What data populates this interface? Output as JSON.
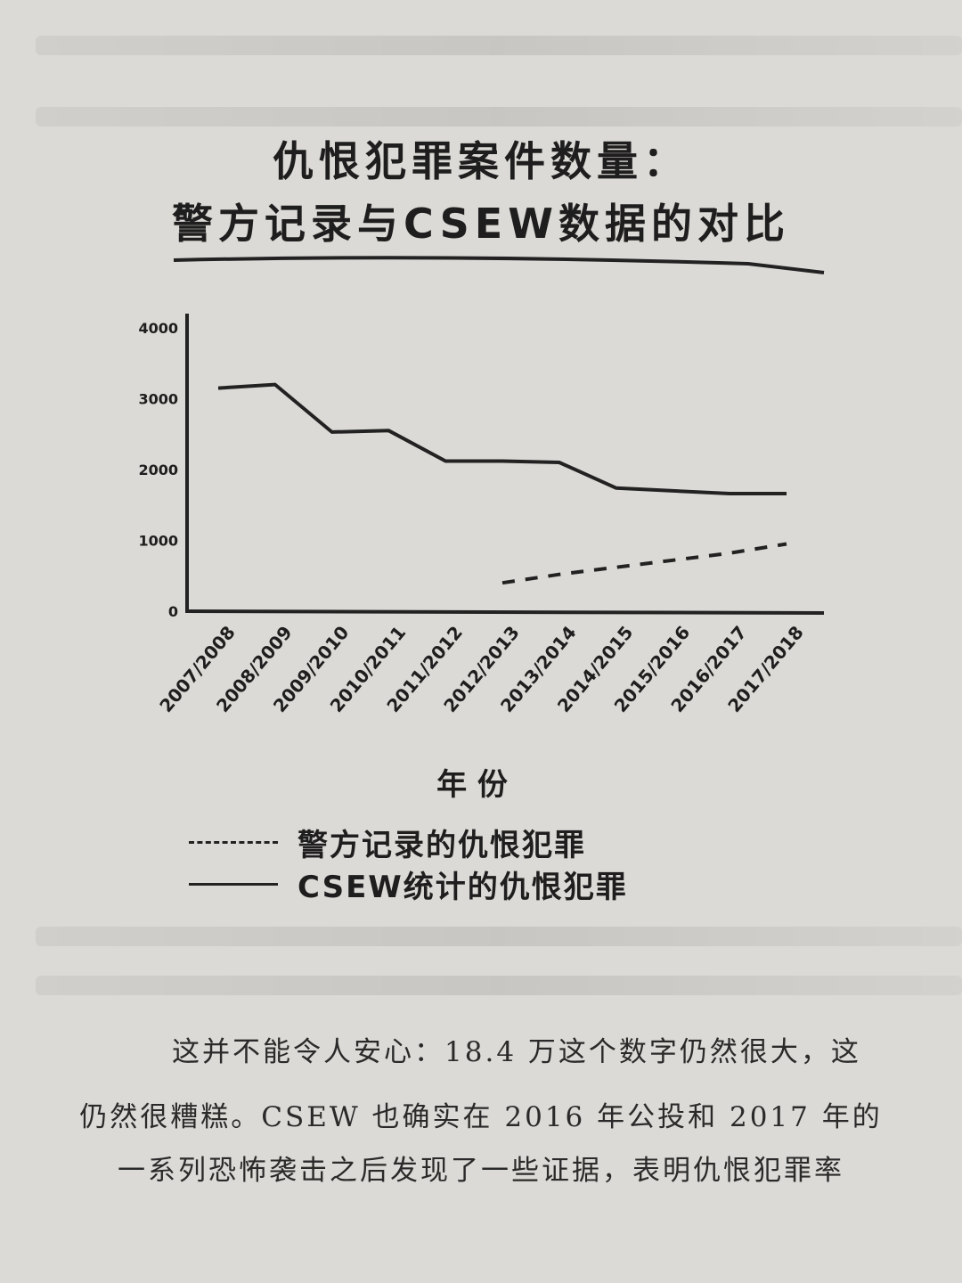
{
  "chart_data": {
    "type": "line",
    "title_lines": [
      "仇恨犯罪案件数量：",
      "警方记录与CSEW数据的对比"
    ],
    "xlabel": "年 份",
    "ylabel": "",
    "categories": [
      "2007/2008",
      "2008/2009",
      "2009/2010",
      "2010/2011",
      "2011/2012",
      "2012/2013",
      "2013/2014",
      "2014/2015",
      "2015/2016",
      "2016/2017",
      "2017/2018"
    ],
    "y_ticks": [
      "0",
      "1000",
      "2000",
      "3000",
      "4000"
    ],
    "y_tick_labels": [
      "0",
      "1000",
      "2000",
      "3000",
      "4000"
    ],
    "ylim": [
      0,
      4000
    ],
    "series": [
      {
        "name": "警方记录的仇恨犯罪",
        "style": "dashed",
        "values": [
          null,
          null,
          null,
          null,
          null,
          400,
          520,
          620,
          720,
          820,
          950
        ]
      },
      {
        "name": "CSEW统计的仇恨犯罪",
        "style": "solid",
        "values": [
          3150,
          3200,
          2530,
          2550,
          2120,
          2120,
          2100,
          1740,
          1700,
          1660,
          1660
        ]
      }
    ],
    "grid": false,
    "legend_position": "bottom-left"
  },
  "legend": [
    {
      "label": "警方记录的仇恨犯罪"
    },
    {
      "label": "CSEW统计的仇恨犯罪"
    }
  ],
  "body_text": [
    "这并不能令人安心：18.4 万这个数字仍然很大，这",
    "仍然很糟糕。CSEW 也确实在 2016 年公投和 2017 年的",
    "一系列恐怖袭击之后发现了一些证据，表明仇恨犯罪率"
  ],
  "colors": {
    "ink": "#222222",
    "paper": "#dcdad6"
  }
}
